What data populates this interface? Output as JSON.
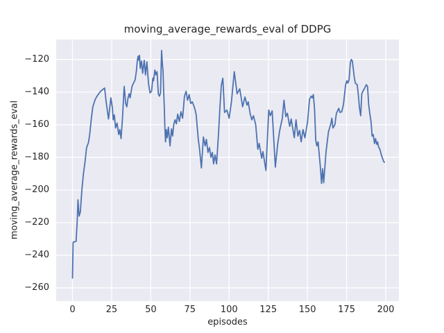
{
  "chart_data": {
    "type": "line",
    "title": "moving_average_rewards_eval of DDPG",
    "xlabel": "episodes",
    "ylabel": "moving_average_rewards_eval",
    "x_ticks": {
      "values": [
        0,
        25,
        50,
        75,
        100,
        125,
        150,
        175,
        200
      ],
      "labels": [
        "0",
        "25",
        "50",
        "75",
        "100",
        "125",
        "150",
        "175",
        "200"
      ]
    },
    "y_ticks": {
      "values": [
        -120,
        -140,
        -160,
        -180,
        -200,
        -220,
        -240,
        -260
      ],
      "labels": [
        "−120",
        "−140",
        "−160",
        "−180",
        "−200",
        "−220",
        "−240",
        "−260"
      ]
    },
    "xlim": [
      -10.4,
      208.4
    ],
    "ylim": [
      -268.1,
      -107.8
    ],
    "grid": true,
    "legend": null,
    "style": {
      "figure_background": "#FFFFFF",
      "axes_background": "#EAEAF2",
      "grid_color": "#FFFFFF",
      "line_color": "#4C72B0",
      "text_color": "#262626"
    },
    "series": [
      {
        "name": "moving_average_rewards_eval",
        "points": [
          [
            0,
            -254
          ],
          [
            0.4,
            -232
          ],
          [
            2.3,
            -231.5
          ],
          [
            3,
            -219
          ],
          [
            3.5,
            -206
          ],
          [
            4.2,
            -216
          ],
          [
            5,
            -213.5
          ],
          [
            6,
            -200
          ],
          [
            7,
            -190
          ],
          [
            8,
            -183
          ],
          [
            9,
            -174
          ],
          [
            10.2,
            -171
          ],
          [
            11,
            -166
          ],
          [
            12,
            -156.5
          ],
          [
            13,
            -149
          ],
          [
            14.5,
            -144.5
          ],
          [
            16,
            -142
          ],
          [
            18,
            -139.5
          ],
          [
            20.5,
            -137.5
          ],
          [
            21.5,
            -146
          ],
          [
            23,
            -156.5
          ],
          [
            24.5,
            -143.5
          ],
          [
            25.5,
            -150
          ],
          [
            26,
            -157
          ],
          [
            26.7,
            -154
          ],
          [
            27.5,
            -162
          ],
          [
            28.5,
            -159
          ],
          [
            29.5,
            -166
          ],
          [
            30.2,
            -163
          ],
          [
            31,
            -168.5
          ],
          [
            32,
            -155
          ],
          [
            33,
            -136.5
          ],
          [
            34,
            -147
          ],
          [
            34.7,
            -149
          ],
          [
            35.5,
            -143.5
          ],
          [
            36.2,
            -141
          ],
          [
            36.8,
            -143.5
          ],
          [
            38,
            -136.5
          ],
          [
            39,
            -134.5
          ],
          [
            40,
            -132.5
          ],
          [
            40.8,
            -127
          ],
          [
            41.4,
            -120.5
          ],
          [
            41.9,
            -118
          ],
          [
            42.4,
            -120.5
          ],
          [
            42.8,
            -117.5
          ],
          [
            43.3,
            -125.5
          ],
          [
            44.1,
            -121
          ],
          [
            44.8,
            -128.5
          ],
          [
            45.8,
            -120.5
          ],
          [
            46.6,
            -129.5
          ],
          [
            47.5,
            -121.5
          ],
          [
            48.5,
            -134.5
          ],
          [
            49.5,
            -140.5
          ],
          [
            50.5,
            -139.5
          ],
          [
            51.3,
            -131.5
          ],
          [
            51.8,
            -133
          ],
          [
            52.6,
            -126.5
          ],
          [
            53.3,
            -129.5
          ],
          [
            54,
            -127.5
          ],
          [
            54.8,
            -141
          ],
          [
            55.5,
            -142.5
          ],
          [
            56.2,
            -140.5
          ],
          [
            56.9,
            -114.5
          ],
          [
            57.4,
            -123
          ],
          [
            57.8,
            -127
          ],
          [
            58.2,
            -139
          ],
          [
            58.6,
            -149
          ],
          [
            59,
            -162
          ],
          [
            59.4,
            -170.5
          ],
          [
            59.9,
            -163
          ],
          [
            60.5,
            -168
          ],
          [
            61.2,
            -161.5
          ],
          [
            62.3,
            -173
          ],
          [
            63.2,
            -162.5
          ],
          [
            63.9,
            -167
          ],
          [
            64.7,
            -159.5
          ],
          [
            65.5,
            -157
          ],
          [
            66.3,
            -159.5
          ],
          [
            67.2,
            -153.5
          ],
          [
            68.2,
            -158
          ],
          [
            69.3,
            -152
          ],
          [
            70.3,
            -156
          ],
          [
            71.5,
            -142.5
          ],
          [
            72.5,
            -139.5
          ],
          [
            73.5,
            -145
          ],
          [
            74.5,
            -141.5
          ],
          [
            75.5,
            -147
          ],
          [
            76.5,
            -146
          ],
          [
            77.5,
            -148.5
          ],
          [
            78.3,
            -151
          ],
          [
            79,
            -154
          ],
          [
            80.3,
            -169
          ],
          [
            81,
            -174
          ],
          [
            82.3,
            -186.5
          ],
          [
            83.6,
            -167.5
          ],
          [
            84.7,
            -173
          ],
          [
            85.5,
            -169
          ],
          [
            86.5,
            -177
          ],
          [
            87.5,
            -174
          ],
          [
            88.4,
            -180
          ],
          [
            89.3,
            -177
          ],
          [
            90.1,
            -184
          ],
          [
            91,
            -178.5
          ],
          [
            92,
            -184
          ],
          [
            93.2,
            -166
          ],
          [
            94.2,
            -148
          ],
          [
            95,
            -136
          ],
          [
            96,
            -131.5
          ],
          [
            97.1,
            -152.5
          ],
          [
            98.6,
            -151
          ],
          [
            100,
            -156
          ],
          [
            101.5,
            -146
          ],
          [
            103.3,
            -127.5
          ],
          [
            105.1,
            -141
          ],
          [
            106.8,
            -138
          ],
          [
            108.6,
            -149
          ],
          [
            110.1,
            -143
          ],
          [
            111.4,
            -148
          ],
          [
            112.2,
            -146
          ],
          [
            113.5,
            -153.5
          ],
          [
            114.5,
            -157
          ],
          [
            115.5,
            -154.5
          ],
          [
            117,
            -160
          ],
          [
            118.3,
            -175
          ],
          [
            119.2,
            -171.5
          ],
          [
            120.8,
            -180.5
          ],
          [
            121.6,
            -176.5
          ],
          [
            123.5,
            -188
          ],
          [
            125.3,
            -151
          ],
          [
            126.3,
            -154.5
          ],
          [
            127.5,
            -151.5
          ],
          [
            129.5,
            -186
          ],
          [
            131,
            -172
          ],
          [
            132.2,
            -164
          ],
          [
            133.2,
            -159.5
          ],
          [
            134,
            -156
          ],
          [
            135,
            -145
          ],
          [
            136.2,
            -155
          ],
          [
            137.2,
            -153
          ],
          [
            138.7,
            -161
          ],
          [
            139.6,
            -156.5
          ],
          [
            141.6,
            -168
          ],
          [
            142.7,
            -157
          ],
          [
            143.9,
            -167
          ],
          [
            145,
            -163.5
          ],
          [
            146,
            -170.5
          ],
          [
            147.2,
            -163
          ],
          [
            148.4,
            -168
          ],
          [
            150.1,
            -158
          ],
          [
            151.3,
            -144.5
          ],
          [
            152.4,
            -142.5
          ],
          [
            153.1,
            -143.5
          ],
          [
            153.8,
            -141.5
          ],
          [
            154.6,
            -151
          ],
          [
            155.3,
            -169.5
          ],
          [
            156,
            -173
          ],
          [
            156.8,
            -170.5
          ],
          [
            158.2,
            -185.5
          ],
          [
            159,
            -196
          ],
          [
            159.7,
            -187
          ],
          [
            160.4,
            -195.5
          ],
          [
            161.9,
            -176.5
          ],
          [
            163.4,
            -164.5
          ],
          [
            164.9,
            -159.5
          ],
          [
            165.6,
            -156
          ],
          [
            166.3,
            -162
          ],
          [
            167.5,
            -160
          ],
          [
            168.5,
            -153
          ],
          [
            170,
            -150
          ],
          [
            170.8,
            -152.5
          ],
          [
            171.9,
            -152
          ],
          [
            173,
            -147.5
          ],
          [
            174.4,
            -135.5
          ],
          [
            175.2,
            -133
          ],
          [
            175.8,
            -134.5
          ],
          [
            176.6,
            -132.5
          ],
          [
            177.4,
            -122
          ],
          [
            178,
            -120
          ],
          [
            178.7,
            -121
          ],
          [
            179.3,
            -126
          ],
          [
            179.9,
            -131
          ],
          [
            180.6,
            -134.5
          ],
          [
            181.8,
            -135.5
          ],
          [
            182.5,
            -141.5
          ],
          [
            183.2,
            -149.5
          ],
          [
            184,
            -154.5
          ],
          [
            184.7,
            -141
          ],
          [
            185.4,
            -139.5
          ],
          [
            186.6,
            -137.5
          ],
          [
            187.6,
            -135.5
          ],
          [
            188.4,
            -136.5
          ],
          [
            189.1,
            -147.5
          ],
          [
            189.8,
            -153
          ],
          [
            190.6,
            -158
          ],
          [
            191.3,
            -167
          ],
          [
            192,
            -166
          ],
          [
            192.8,
            -171.5
          ],
          [
            193.5,
            -168.5
          ],
          [
            194.2,
            -172
          ],
          [
            194.8,
            -170.5
          ],
          [
            195.4,
            -173.5
          ],
          [
            196.4,
            -175.5
          ],
          [
            197.2,
            -178.5
          ],
          [
            197.9,
            -180.5
          ],
          [
            198.6,
            -182.5
          ],
          [
            199.2,
            -183
          ]
        ]
      }
    ]
  }
}
